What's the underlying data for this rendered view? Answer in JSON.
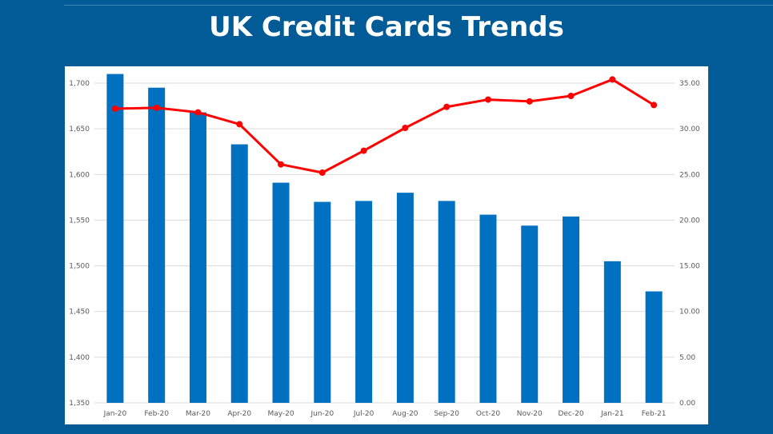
{
  "title": "UK Credit Cards Trends",
  "colors": {
    "background": "#005b97",
    "bar": "#0070c0",
    "line": "#ff0000"
  },
  "chart_data": {
    "type": "bar+line",
    "title": "UK Credit Cards Trends",
    "categories": [
      "Jan-20",
      "Feb-20",
      "Mar-20",
      "Apr-20",
      "May-20",
      "Jun-20",
      "Jul-20",
      "Aug-20",
      "Sep-20",
      "Oct-20",
      "Nov-20",
      "Dec-20",
      "Jan-21",
      "Feb-21"
    ],
    "series": [
      {
        "type": "bar",
        "axis": "left",
        "values": [
          1710,
          1695,
          1668,
          1633,
          1591,
          1570,
          1571,
          1580,
          1571,
          1556,
          1544,
          1554,
          1505,
          1472
        ]
      },
      {
        "type": "line",
        "axis": "right",
        "values": [
          32.2,
          32.3,
          31.8,
          30.5,
          26.1,
          25.2,
          27.6,
          30.1,
          32.4,
          33.2,
          33.0,
          33.6,
          35.4,
          32.6
        ]
      }
    ],
    "left_axis": {
      "ylim": [
        1350,
        1700
      ],
      "ticks": [
        "1,350",
        "1,400",
        "1,450",
        "1,500",
        "1,550",
        "1,600",
        "1,650",
        "1,700"
      ]
    },
    "right_axis": {
      "ylim": [
        0,
        35
      ],
      "ticks": [
        "0.00",
        "5.00",
        "10.00",
        "15.00",
        "20.00",
        "25.00",
        "30.00",
        "35.00"
      ]
    },
    "grid": true,
    "legend": "none"
  }
}
